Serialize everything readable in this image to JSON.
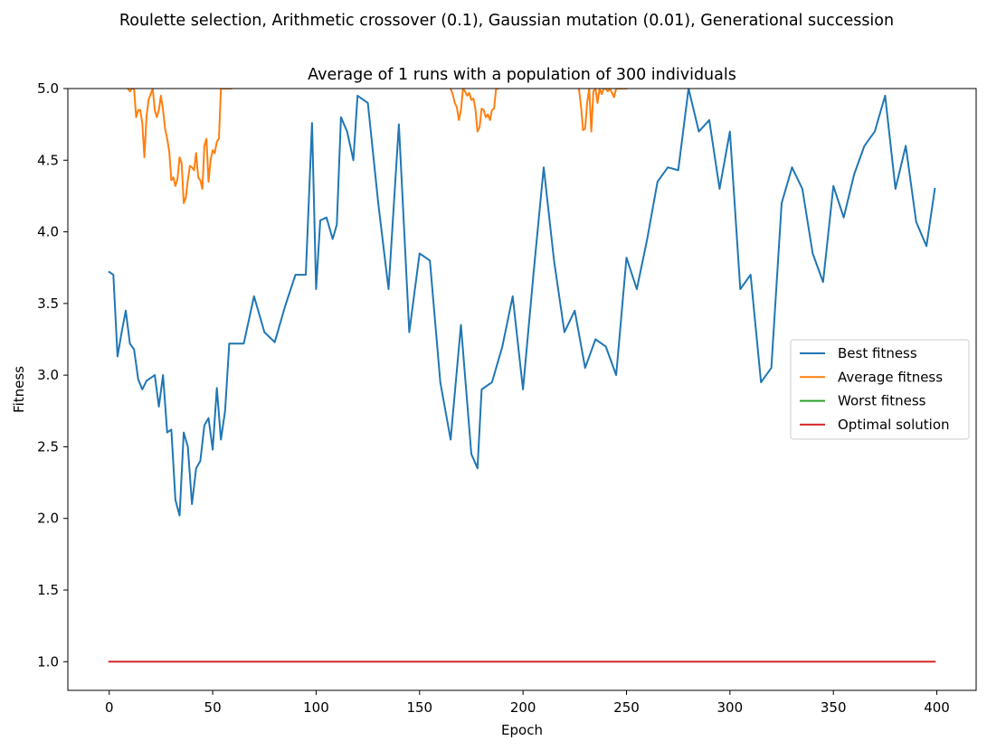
{
  "chart_data": {
    "type": "line",
    "suptitle": "Roulette selection, Arithmetic crossover (0.1), Gaussian mutation (0.01), Generational succession",
    "title": "Average of 1 runs with a population of 300 individuals",
    "xlabel": "Epoch",
    "ylabel": "Fitness",
    "xlim": [
      -20,
      419
    ],
    "ylim": [
      0.8,
      5.0
    ],
    "xticks": [
      "0",
      "50",
      "100",
      "150",
      "200",
      "250",
      "300",
      "350",
      "400"
    ],
    "yticks": [
      "1.0",
      "1.5",
      "2.0",
      "2.5",
      "3.0",
      "3.5",
      "4.0",
      "4.5",
      "5.0"
    ],
    "grid": false,
    "legend_position": "center-right",
    "series": [
      {
        "name": "Best fitness",
        "color": "#1f77b4",
        "x": [
          0,
          2,
          4,
          6,
          8,
          10,
          12,
          14,
          16,
          18,
          20,
          22,
          24,
          26,
          28,
          30,
          32,
          34,
          36,
          38,
          40,
          42,
          44,
          46,
          48,
          50,
          52,
          54,
          56,
          58,
          60,
          65,
          70,
          75,
          80,
          85,
          90,
          95,
          98,
          100,
          102,
          105,
          108,
          110,
          112,
          115,
          118,
          120,
          125,
          130,
          135,
          140,
          145,
          150,
          155,
          160,
          165,
          170,
          175,
          178,
          180,
          185,
          190,
          195,
          200,
          205,
          210,
          215,
          220,
          225,
          230,
          235,
          240,
          245,
          250,
          255,
          260,
          265,
          270,
          275,
          280,
          285,
          290,
          295,
          300,
          305,
          310,
          315,
          320,
          325,
          330,
          335,
          340,
          345,
          350,
          355,
          360,
          365,
          370,
          375,
          380,
          385,
          390,
          395,
          399
        ],
        "y": [
          3.72,
          3.7,
          3.13,
          3.3,
          3.45,
          3.22,
          3.18,
          2.97,
          2.9,
          2.96,
          2.98,
          3.0,
          2.78,
          3.0,
          2.6,
          2.62,
          2.13,
          2.02,
          2.6,
          2.5,
          2.1,
          2.35,
          2.4,
          2.65,
          2.7,
          2.48,
          2.91,
          2.55,
          2.75,
          3.22,
          3.22,
          3.22,
          3.55,
          3.3,
          3.23,
          3.48,
          3.7,
          3.7,
          4.76,
          3.6,
          4.08,
          4.1,
          3.95,
          4.05,
          4.8,
          4.7,
          4.5,
          4.95,
          4.9,
          4.2,
          3.6,
          4.75,
          3.3,
          3.85,
          3.8,
          2.95,
          2.55,
          3.35,
          2.45,
          2.35,
          2.9,
          2.95,
          3.2,
          3.55,
          2.9,
          3.7,
          4.45,
          3.8,
          3.3,
          3.45,
          3.05,
          3.25,
          3.2,
          3.0,
          3.82,
          3.6,
          3.95,
          4.35,
          4.45,
          4.43,
          5.0,
          4.7,
          4.78,
          4.3,
          4.7,
          3.6,
          3.7,
          2.95,
          3.05,
          4.2,
          4.45,
          4.3,
          3.85,
          3.65,
          4.32,
          4.1,
          4.4,
          4.6,
          4.7,
          4.95,
          4.3,
          4.6,
          4.07,
          3.9,
          4.3
        ]
      },
      {
        "name": "Average fitness",
        "color": "#ff7f0e",
        "x": [
          9,
          10,
          11,
          12,
          13,
          14,
          15,
          16,
          17,
          18,
          19,
          20,
          21,
          22,
          23,
          24,
          25,
          26,
          27,
          28,
          29,
          30,
          31,
          32,
          33,
          34,
          35,
          36,
          37,
          38,
          39,
          40,
          41,
          42,
          43,
          44,
          45,
          46,
          47,
          48,
          49,
          50,
          51,
          52,
          53,
          54,
          55,
          56,
          57,
          58,
          59,
          "break",
          165,
          166,
          167,
          168,
          169,
          170,
          171,
          172,
          173,
          174,
          175,
          176,
          177,
          178,
          179,
          180,
          181,
          182,
          183,
          184,
          185,
          186,
          187,
          188,
          "break",
          227,
          228,
          229,
          230,
          231,
          232,
          233,
          234,
          235,
          236,
          237,
          238,
          239,
          240,
          241,
          242,
          243,
          244,
          245,
          246,
          247,
          248,
          249,
          250
        ],
        "y": [
          5.0,
          4.98,
          5.0,
          5.0,
          4.8,
          4.85,
          4.85,
          4.76,
          4.52,
          4.8,
          4.92,
          4.96,
          5.0,
          4.85,
          4.8,
          4.85,
          4.95,
          4.85,
          4.72,
          4.65,
          4.56,
          4.36,
          4.38,
          4.32,
          4.37,
          4.52,
          4.48,
          4.2,
          4.24,
          4.36,
          4.46,
          4.45,
          4.43,
          4.55,
          4.38,
          4.36,
          4.3,
          4.6,
          4.65,
          4.35,
          4.5,
          4.57,
          4.55,
          4.63,
          4.65,
          5.0,
          5.0,
          5.0,
          5.0,
          5.0,
          5.0,
          "break",
          5.0,
          4.96,
          4.9,
          4.87,
          4.78,
          4.85,
          5.0,
          4.98,
          4.95,
          4.97,
          4.92,
          4.93,
          4.86,
          4.7,
          4.73,
          4.86,
          4.85,
          4.8,
          4.82,
          4.78,
          4.85,
          4.86,
          5.0,
          5.0,
          "break",
          5.0,
          4.88,
          4.71,
          4.72,
          4.9,
          5.0,
          4.7,
          4.98,
          5.0,
          4.9,
          5.0,
          4.96,
          5.0,
          5.0,
          4.98,
          5.0,
          4.97,
          4.94,
          5.0,
          5.0,
          5.0,
          5.0,
          5.0,
          5.0
        ]
      },
      {
        "name": "Worst fitness",
        "color": "#2ca02c",
        "x": [],
        "y": []
      },
      {
        "name": "Optimal solution",
        "color": "#d62728",
        "x": [
          0,
          399
        ],
        "y": [
          1.0,
          1.0
        ]
      }
    ]
  }
}
